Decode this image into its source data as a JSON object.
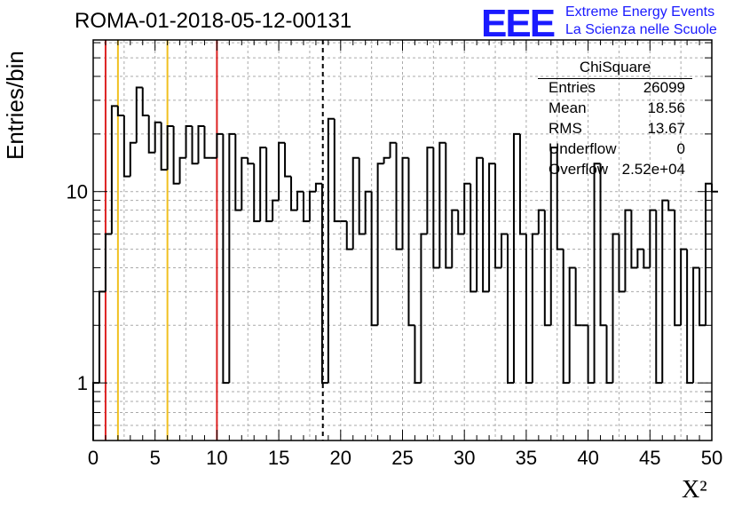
{
  "page": {
    "title": "ROMA-01-2018-05-12-00131",
    "logo": {
      "mark": "EEE",
      "line1": "Extreme Energy Events",
      "line2": "La Scienza nelle Scuole",
      "color": "#1a1aff"
    }
  },
  "stats_box": {
    "name": "ChiSquare",
    "rows": [
      {
        "key": "Entries",
        "value": "26099"
      },
      {
        "key": "Mean",
        "value": "18.56"
      },
      {
        "key": "RMS",
        "value": "13.67"
      },
      {
        "key": "Underflow",
        "value": "0"
      },
      {
        "key": "Overflow",
        "value": "2.52e+04"
      }
    ]
  },
  "chart_data": {
    "type": "histogram",
    "xlabel": "X²",
    "ylabel": "Entries/bin",
    "xlim": [
      0,
      50
    ],
    "ylim": [
      0.5,
      62
    ],
    "yscale": "log",
    "grid": true,
    "bin_width": 0.5,
    "x_ticks": [
      "0",
      "5",
      "10",
      "15",
      "20",
      "25",
      "30",
      "35",
      "40",
      "45",
      "50"
    ],
    "y_ticks": [
      {
        "value": 1,
        "label": "1"
      },
      {
        "value": 10,
        "label": "10"
      }
    ],
    "bin_counts": [
      1,
      3,
      6,
      28,
      25,
      12,
      18,
      35,
      25,
      16,
      23,
      13,
      22,
      11,
      15,
      22,
      14,
      22,
      15,
      15,
      20,
      1,
      20,
      8,
      15,
      14,
      7,
      17,
      7,
      9,
      18,
      12,
      8,
      10,
      7,
      10,
      11,
      1,
      24,
      7,
      7,
      5,
      15,
      6,
      10,
      2,
      14,
      15,
      18,
      5,
      15,
      2,
      1,
      6,
      17,
      4,
      18,
      4,
      8,
      6,
      11,
      3,
      15,
      3,
      14,
      4,
      6,
      1,
      20,
      6,
      1,
      6,
      8,
      2,
      17,
      5,
      1,
      4,
      2,
      2,
      1,
      14,
      2,
      1,
      6,
      3,
      8,
      4,
      5,
      4,
      8,
      1,
      9,
      8,
      2,
      5,
      1,
      4,
      2,
      11,
      10
    ],
    "vertical_lines": [
      {
        "x": 1,
        "color": "#dd2222",
        "style": "solid"
      },
      {
        "x": 2,
        "color": "#f0c020",
        "style": "solid"
      },
      {
        "x": 6,
        "color": "#f0c020",
        "style": "solid"
      },
      {
        "x": 10,
        "color": "#dd2222",
        "style": "solid"
      },
      {
        "x": 18.56,
        "color": "#000000",
        "style": "dashed"
      }
    ]
  }
}
